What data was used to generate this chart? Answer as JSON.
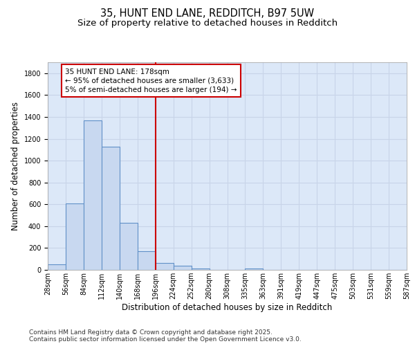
{
  "title_line1": "35, HUNT END LANE, REDDITCH, B97 5UW",
  "title_line2": "Size of property relative to detached houses in Redditch",
  "xlabel": "Distribution of detached houses by size in Redditch",
  "ylabel": "Number of detached properties",
  "bar_values": [
    50,
    605,
    1365,
    1125,
    430,
    170,
    65,
    40,
    10,
    0,
    0,
    10,
    0,
    0,
    0,
    0,
    0,
    0,
    0,
    0
  ],
  "bin_labels": [
    "28sqm",
    "56sqm",
    "84sqm",
    "112sqm",
    "140sqm",
    "168sqm",
    "196sqm",
    "224sqm",
    "252sqm",
    "280sqm",
    "308sqm",
    "335sqm",
    "363sqm",
    "391sqm",
    "419sqm",
    "447sqm",
    "475sqm",
    "503sqm",
    "531sqm",
    "559sqm",
    "587sqm"
  ],
  "bar_fill_color": "#c8d8f0",
  "bar_edge_color": "#6090c8",
  "vline_color": "#cc0000",
  "annotation_text_line1": "35 HUNT END LANE: 178sqm",
  "annotation_text_line2": "← 95% of detached houses are smaller (3,633)",
  "annotation_text_line3": "5% of semi-detached houses are larger (194) →",
  "annotation_box_color": "#cc0000",
  "annotation_bg": "#ffffff",
  "ylim": [
    0,
    1900
  ],
  "yticks": [
    0,
    200,
    400,
    600,
    800,
    1000,
    1200,
    1400,
    1600,
    1800
  ],
  "grid_color": "#c8d4e8",
  "bg_color": "#dce8f8",
  "footer_line1": "Contains HM Land Registry data © Crown copyright and database right 2025.",
  "footer_line2": "Contains public sector information licensed under the Open Government Licence v3.0.",
  "title_fontsize": 10.5,
  "subtitle_fontsize": 9.5,
  "axis_label_fontsize": 8.5,
  "tick_fontsize": 7,
  "annotation_fontsize": 7.5,
  "footer_fontsize": 6.5
}
